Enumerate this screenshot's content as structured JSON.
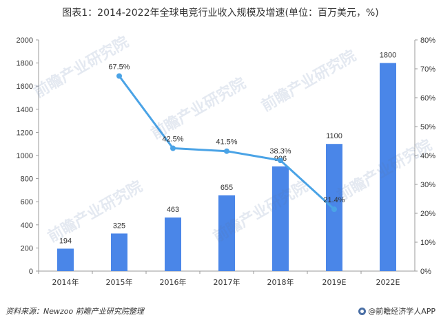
{
  "title": "图表1：2014-2022年全球电竞行业收入规模及增速(单位：百万美元，%)",
  "source": "资料来源：Newzoo 前瞻产业研究院整理",
  "brand": "@前瞻经济学人APP",
  "watermark_text": "前瞻产业研究院",
  "colors": {
    "bar": "#4a86e8",
    "line": "#4aa3e6",
    "axis": "#999999",
    "grid": "#d9d9d9"
  },
  "chart_data": {
    "type": "bar",
    "categories": [
      "2014年",
      "2015年",
      "2016年",
      "2017年",
      "2018年",
      "2019E",
      "2022E"
    ],
    "series": [
      {
        "values": [
          194,
          325,
          463,
          655,
          906,
          1100,
          1800
        ],
        "labels": [
          "194",
          "325",
          "463",
          "655",
          "906",
          "1100",
          "1800"
        ]
      }
    ],
    "line_series": {
      "points": [
        {
          "x": "2015年",
          "y": 67.5,
          "label": "67.5%"
        },
        {
          "x": "2016年",
          "y": 42.5,
          "label": "42.5%"
        },
        {
          "x": "2017年",
          "y": 41.5,
          "label": "41.5%"
        },
        {
          "x": "2018年",
          "y": 38.3,
          "label": "38.3%"
        },
        {
          "x": "2019E",
          "y": 21.4,
          "label": "21.4%"
        }
      ]
    },
    "y_left": {
      "ylim": [
        0,
        2000
      ],
      "ticks": [
        "0",
        "200",
        "400",
        "600",
        "800",
        "1000",
        "1200",
        "1400",
        "1600",
        "1800",
        "2000"
      ]
    },
    "y_right": {
      "ylim": [
        0,
        80
      ],
      "ticks": [
        "0%",
        "10%",
        "20%",
        "30%",
        "40%",
        "50%",
        "60%",
        "70%",
        "80%"
      ]
    },
    "grid": false,
    "legend": "none"
  }
}
